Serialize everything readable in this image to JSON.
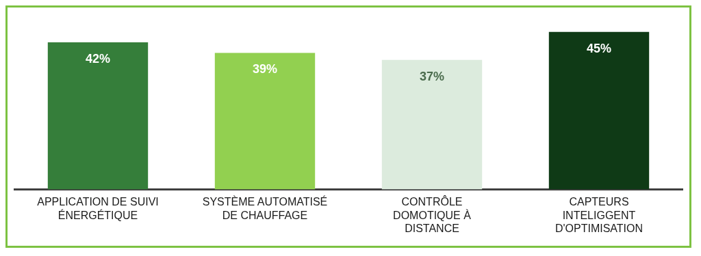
{
  "chart_data": {
    "type": "bar",
    "categories": [
      "APPLICATION DE SUIVI ÉNERGÉTIQUE",
      "SYSTÈME AUTOMATISÉ DE CHAUFFAGE",
      "CONTRÔLE DOMOTIQUE À DISTANCE",
      "CAPTEURS INTELIGGENT D'OPTIMISATION"
    ],
    "values": [
      42,
      39,
      37,
      45
    ],
    "colors": [
      "#357e3a",
      "#92d050",
      "#dcebdd",
      "#0f3a16"
    ],
    "value_labels": [
      "42%",
      "39%",
      "37%",
      "45%"
    ],
    "tick_labels": "x",
    "grid": false,
    "legend": false
  }
}
